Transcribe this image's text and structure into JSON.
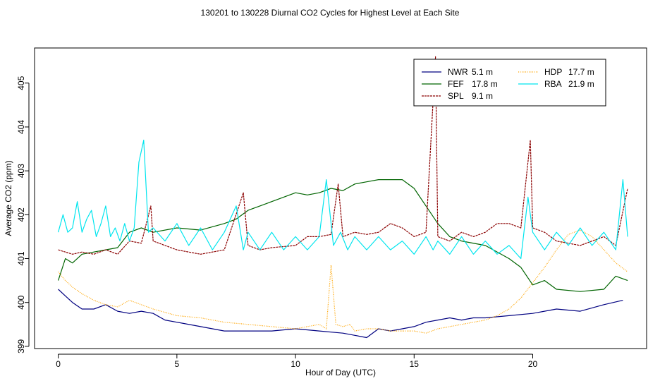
{
  "chart_data": {
    "type": "line",
    "title": "130201  to  130228 Diurnal CO2 Cycles for Highest Level at Each Site",
    "xlabel": "Hour of Day (UTC)",
    "ylabel": "Average CO2 (ppm)",
    "xlim": [
      -1,
      24.8
    ],
    "ylim": [
      398.95,
      405.8
    ],
    "xticks": [
      0,
      5,
      10,
      15,
      20
    ],
    "xtick_labels": [
      "0",
      "5",
      "10",
      "15",
      "20"
    ],
    "yticks": [
      399,
      400,
      401,
      402,
      403,
      404,
      405
    ],
    "ytick_labels": [
      "399",
      "400",
      "401",
      "402",
      "403",
      "404",
      "405"
    ],
    "grid": false,
    "legend_position": "top-right",
    "series": [
      {
        "name": "NWR",
        "height": "5.1 m",
        "color": "#000080",
        "dash": "solid",
        "x": [
          0,
          0.3,
          0.6,
          1.0,
          1.5,
          2.0,
          2.5,
          3.0,
          3.5,
          4.0,
          4.5,
          5.0,
          6.0,
          7.0,
          8.0,
          9.0,
          10.0,
          11.0,
          12.0,
          12.5,
          13.0,
          13.5,
          14.0,
          14.5,
          15.0,
          15.5,
          16.0,
          16.5,
          17.0,
          17.5,
          18.0,
          19.0,
          20.0,
          21.0,
          22.0,
          23.0,
          23.8
        ],
        "y": [
          400.3,
          400.15,
          400.0,
          399.85,
          399.85,
          399.95,
          399.8,
          399.75,
          399.8,
          399.75,
          399.6,
          399.55,
          399.45,
          399.35,
          399.35,
          399.35,
          399.4,
          399.35,
          399.3,
          399.25,
          399.2,
          399.4,
          399.35,
          399.4,
          399.45,
          399.55,
          399.6,
          399.65,
          399.6,
          399.65,
          399.65,
          399.7,
          399.75,
          399.85,
          399.8,
          399.95,
          400.05
        ]
      },
      {
        "name": "FEF",
        "height": "17.8 m",
        "color": "#006400",
        "dash": "solid",
        "x": [
          0,
          0.3,
          0.6,
          1.0,
          1.5,
          2.0,
          2.5,
          3.0,
          3.5,
          4.0,
          5.0,
          6.0,
          7.0,
          7.5,
          8.0,
          8.5,
          9.0,
          9.5,
          10.0,
          10.5,
          11.0,
          11.5,
          12.0,
          12.5,
          13.0,
          13.5,
          14.0,
          14.5,
          15.0,
          15.5,
          16.0,
          16.5,
          17.0,
          18.0,
          19.0,
          19.5,
          20.0,
          20.5,
          21.0,
          22.0,
          23.0,
          23.5,
          24.0
        ],
        "y": [
          400.5,
          401.0,
          400.9,
          401.1,
          401.15,
          401.2,
          401.25,
          401.6,
          401.7,
          401.6,
          401.7,
          401.65,
          401.8,
          401.9,
          402.1,
          402.2,
          402.3,
          402.4,
          402.5,
          402.45,
          402.5,
          402.6,
          402.55,
          402.7,
          402.75,
          402.8,
          402.8,
          402.8,
          402.6,
          402.2,
          401.8,
          401.5,
          401.4,
          401.3,
          401.0,
          400.8,
          400.4,
          400.5,
          400.3,
          400.25,
          400.3,
          400.6,
          400.5
        ]
      },
      {
        "name": "SPL",
        "height": "9.1 m",
        "color": "#8b0000",
        "dash": "dashed",
        "x": [
          0,
          0.3,
          0.6,
          1.0,
          1.5,
          2.0,
          2.5,
          3.0,
          3.5,
          3.9,
          4.0,
          4.5,
          5.0,
          6.0,
          7.0,
          7.8,
          8.0,
          8.5,
          9.0,
          10.0,
          10.5,
          11.0,
          11.5,
          11.8,
          12.0,
          12.5,
          13.0,
          13.5,
          14.0,
          14.5,
          15.0,
          15.5,
          15.9,
          16.0,
          16.5,
          17.0,
          17.5,
          18.0,
          18.5,
          19.0,
          19.5,
          19.9,
          20.0,
          20.5,
          21.0,
          22.0,
          23.0,
          23.5,
          24.0
        ],
        "y": [
          401.2,
          401.15,
          401.1,
          401.15,
          401.1,
          401.2,
          401.1,
          401.4,
          401.35,
          402.2,
          401.4,
          401.3,
          401.2,
          401.1,
          401.2,
          402.5,
          401.3,
          401.2,
          401.25,
          401.3,
          401.5,
          401.5,
          401.55,
          402.7,
          401.5,
          401.6,
          401.55,
          401.6,
          401.8,
          401.7,
          401.5,
          401.6,
          405.6,
          401.5,
          401.4,
          401.6,
          401.5,
          401.6,
          401.8,
          401.8,
          401.7,
          403.7,
          401.7,
          401.6,
          401.4,
          401.3,
          401.5,
          401.3,
          402.6
        ]
      },
      {
        "name": "HDP",
        "height": "17.7 m",
        "color": "#ffa500",
        "dash": "dotted",
        "x": [
          0,
          0.3,
          0.6,
          1.0,
          1.5,
          2.0,
          2.5,
          3.0,
          3.5,
          4.0,
          5.0,
          6.0,
          7.0,
          8.0,
          9.0,
          10.0,
          10.5,
          11.0,
          11.3,
          11.5,
          11.7,
          12.0,
          12.3,
          12.5,
          13.0,
          13.5,
          14.0,
          15.0,
          15.5,
          16.0,
          16.5,
          17.0,
          17.5,
          18.0,
          18.5,
          19.0,
          19.5,
          20.0,
          20.5,
          21.0,
          21.5,
          22.0,
          22.5,
          23.0,
          23.5,
          24.0
        ],
        "y": [
          400.7,
          400.5,
          400.35,
          400.2,
          400.05,
          399.95,
          399.9,
          400.05,
          399.95,
          399.85,
          399.7,
          399.65,
          399.55,
          399.5,
          399.45,
          399.4,
          399.45,
          399.5,
          399.4,
          400.85,
          399.5,
          399.45,
          399.5,
          399.35,
          399.4,
          399.4,
          399.35,
          399.35,
          399.3,
          399.4,
          399.45,
          399.5,
          399.55,
          399.6,
          399.7,
          399.85,
          400.1,
          400.45,
          400.8,
          401.2,
          401.55,
          401.65,
          401.5,
          401.2,
          400.9,
          400.7
        ]
      },
      {
        "name": "RBA",
        "height": "21.9 m",
        "color": "#00e5ee",
        "dash": "solid",
        "x": [
          0,
          0.2,
          0.4,
          0.6,
          0.8,
          1.0,
          1.2,
          1.4,
          1.6,
          1.8,
          2.0,
          2.2,
          2.4,
          2.6,
          2.8,
          3.0,
          3.2,
          3.4,
          3.6,
          3.8,
          4.0,
          4.5,
          5.0,
          5.5,
          6.0,
          6.5,
          7.0,
          7.5,
          7.8,
          8.0,
          8.5,
          9.0,
          9.5,
          10.0,
          10.5,
          11.0,
          11.3,
          11.6,
          11.9,
          12.2,
          12.5,
          13.0,
          13.5,
          14.0,
          14.5,
          15.0,
          15.5,
          15.8,
          16.0,
          16.5,
          17.0,
          17.5,
          18.0,
          18.5,
          19.0,
          19.5,
          19.8,
          20.0,
          20.5,
          21.0,
          21.5,
          22.0,
          22.5,
          23.0,
          23.5,
          23.8,
          24.0
        ],
        "y": [
          401.6,
          402.0,
          401.6,
          401.7,
          402.3,
          401.6,
          401.9,
          402.1,
          401.5,
          401.8,
          402.2,
          401.5,
          401.7,
          401.4,
          401.8,
          401.4,
          401.7,
          403.2,
          403.7,
          401.6,
          401.7,
          401.4,
          401.8,
          401.3,
          401.7,
          401.2,
          401.6,
          402.2,
          401.2,
          401.6,
          401.2,
          401.6,
          401.2,
          401.5,
          401.2,
          401.5,
          402.8,
          401.3,
          401.6,
          401.2,
          401.5,
          401.2,
          401.5,
          401.2,
          401.4,
          401.1,
          401.5,
          401.2,
          401.4,
          401.1,
          401.5,
          401.1,
          401.4,
          401.1,
          401.3,
          401.0,
          402.4,
          401.6,
          401.2,
          401.6,
          401.3,
          401.7,
          401.3,
          401.6,
          401.2,
          402.8,
          401.5
        ]
      }
    ]
  }
}
